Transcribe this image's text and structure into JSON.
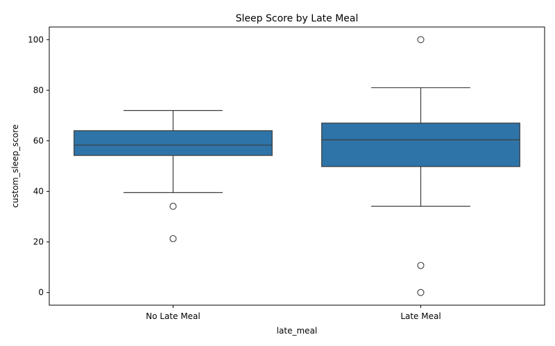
{
  "chart_data": {
    "type": "box",
    "title": "Sleep Score by Late Meal",
    "xlabel": "late_meal",
    "ylabel": "custom_sleep_score",
    "ylim": [
      -5,
      105
    ],
    "yticks": [
      0,
      20,
      40,
      60,
      80,
      100
    ],
    "grid": false,
    "legend": "none",
    "box_color": "#2f74a8",
    "line_color": "#3a3a3a",
    "categories": [
      "No Late Meal",
      "Late Meal"
    ],
    "boxes": [
      {
        "category": "No Late Meal",
        "whisker_low": 39.5,
        "q1": 54.2,
        "median": 58.3,
        "q3": 64.0,
        "whisker_high": 72.0,
        "outliers": [
          34.1,
          21.3
        ]
      },
      {
        "category": "Late Meal",
        "whisker_low": 34.1,
        "q1": 49.8,
        "median": 60.4,
        "q3": 67.0,
        "whisker_high": 81.0,
        "outliers": [
          100.0,
          10.7,
          0.0
        ]
      }
    ]
  }
}
